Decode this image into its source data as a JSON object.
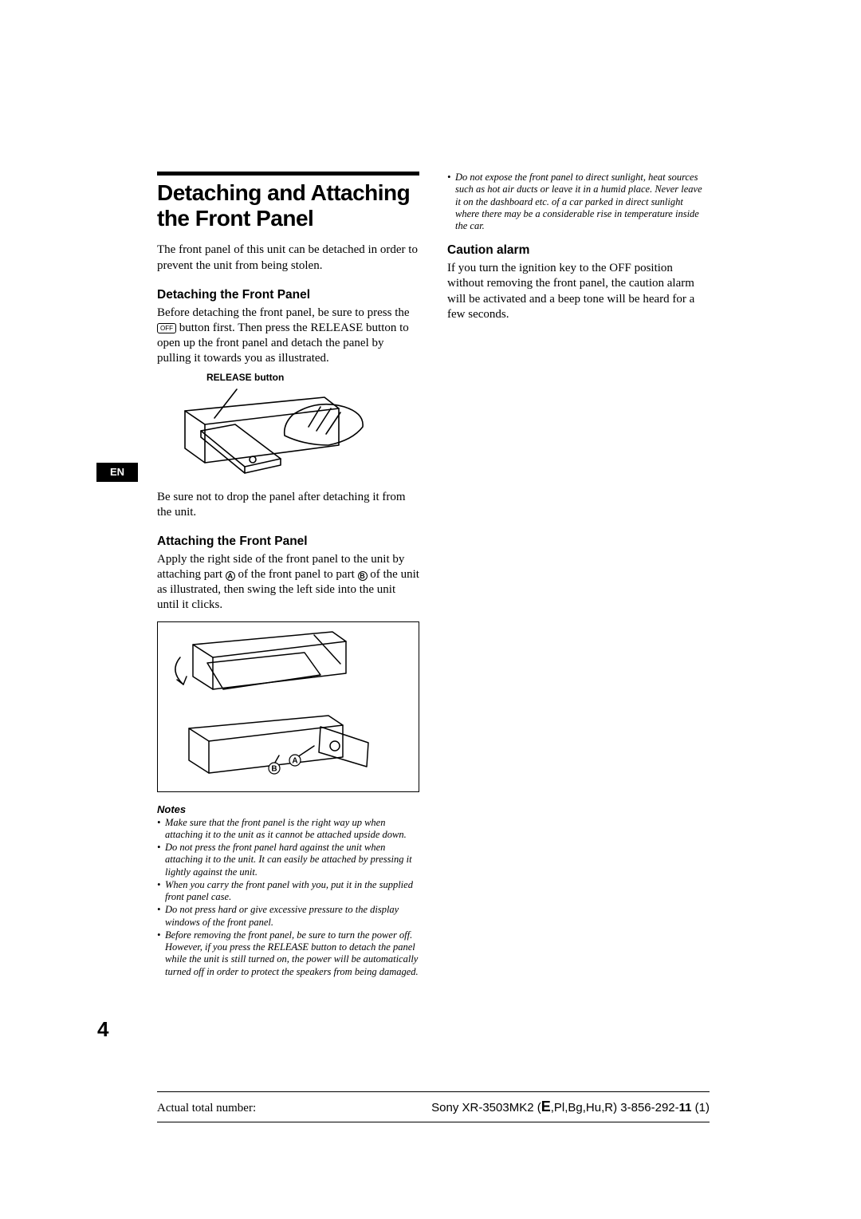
{
  "lang_tab": "EN",
  "page_number": "4",
  "col_left": {
    "h1_line1": "Detaching and Attaching",
    "h1_line2": "the Front Panel",
    "intro": "The front panel of this unit can be detached in order to prevent the unit from being stolen.",
    "detach": {
      "heading": "Detaching the Front Panel",
      "text_pre": "Before detaching the front panel, be sure to press the ",
      "off_label": "OFF",
      "text_post": " button first. Then press the RELEASE button to open up the front panel and detach the panel by pulling it towards you as illustrated.",
      "fig_label": "RELEASE button",
      "note_after": "Be sure not to drop the panel after detaching it from the unit."
    },
    "attach": {
      "heading": "Attaching the Front Panel",
      "text_pre": "Apply the right side of the front panel to the unit by attaching part ",
      "label_a": "A",
      "text_mid": " of the front panel to part ",
      "label_b": "B",
      "text_post": " of the unit as illustrated, then swing the left side into the unit until it clicks."
    },
    "notes_heading": "Notes",
    "notes": [
      "Make sure that the front panel is the right way up when attaching it to the unit as it cannot be attached upside down.",
      "Do not press the front panel hard against the unit when attaching it to the unit. It can easily be attached by pressing it lightly against the unit.",
      "When you carry the front panel with you, put it in the supplied front panel case.",
      "Do not press hard or give excessive pressure to the display windows of the front panel.",
      "Before removing the front panel, be sure to turn the power off. However, if you press the RELEASE button to detach the panel while the unit is still turned on, the power will be automatically turned off in order to protect the speakers from being damaged."
    ]
  },
  "col_right": {
    "top_note": "Do not expose the front panel to direct sunlight, heat sources such as hot air ducts or leave it in a humid place. Never leave it on the dashboard etc. of a car parked in direct sunlight where there may be a considerable rise in temperature inside the car.",
    "caution": {
      "heading": "Caution alarm",
      "text": "If you turn the ignition key to the OFF position without removing the front panel, the caution alarm will be activated and a beep tone will be heard for a few seconds."
    }
  },
  "footer": {
    "left": "Actual total number:",
    "right_prefix": "Sony XR-3503MK2 (",
    "right_e": "E",
    "right_mid": ",Pl,Bg,Hu,R) 3-856-292-",
    "right_bold": "11",
    "right_suffix": " (1)"
  },
  "style": {
    "page_bg": "#ffffff",
    "text_color": "#000000",
    "rule_color": "#000000"
  },
  "fig1": {
    "label_a": "A",
    "label_b": "B"
  }
}
